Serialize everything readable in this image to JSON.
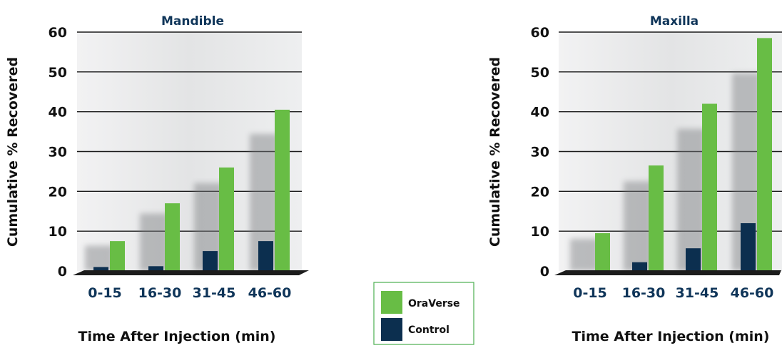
{
  "colors": {
    "oraverse": "#68bd45",
    "control": "#0c2f4f",
    "title": "#0f3559",
    "plot_bg": "#e5e6e7",
    "legend_border": "#4caf50"
  },
  "legend": {
    "items": [
      {
        "label": "OraVerse",
        "color": "#68bd45"
      },
      {
        "label": "Control",
        "color": "#0c2f4f"
      }
    ],
    "placement": "bottom-center"
  },
  "chart_data": [
    {
      "type": "bar",
      "title": "Mandible",
      "xlabel": "Time After Injection (min)",
      "ylabel": "Cumulative % Recovered",
      "categories": [
        "0-15",
        "16-30",
        "31-45",
        "46-60"
      ],
      "yticks": [
        "0",
        "10",
        "20",
        "30",
        "40",
        "50",
        "60"
      ],
      "ylim": [
        0,
        60
      ],
      "grid": true,
      "series": [
        {
          "name": "OraVerse",
          "values": [
            7.5,
            17,
            26,
            40.5
          ]
        },
        {
          "name": "Control",
          "values": [
            1,
            1.2,
            5,
            7.5
          ]
        }
      ]
    },
    {
      "type": "bar",
      "title": "Maxilla",
      "xlabel": "Time After Injection (min)",
      "ylabel": "Cumulative % Recovered",
      "categories": [
        "0-15",
        "16-30",
        "31-45",
        "46-60"
      ],
      "yticks": [
        "0",
        "10",
        "20",
        "30",
        "40",
        "50",
        "60"
      ],
      "ylim": [
        0,
        60
      ],
      "grid": true,
      "series": [
        {
          "name": "OraVerse",
          "values": [
            9.5,
            26.5,
            42,
            58.5
          ]
        },
        {
          "name": "Control",
          "values": [
            0,
            2.2,
            5.7,
            12
          ]
        }
      ]
    }
  ]
}
